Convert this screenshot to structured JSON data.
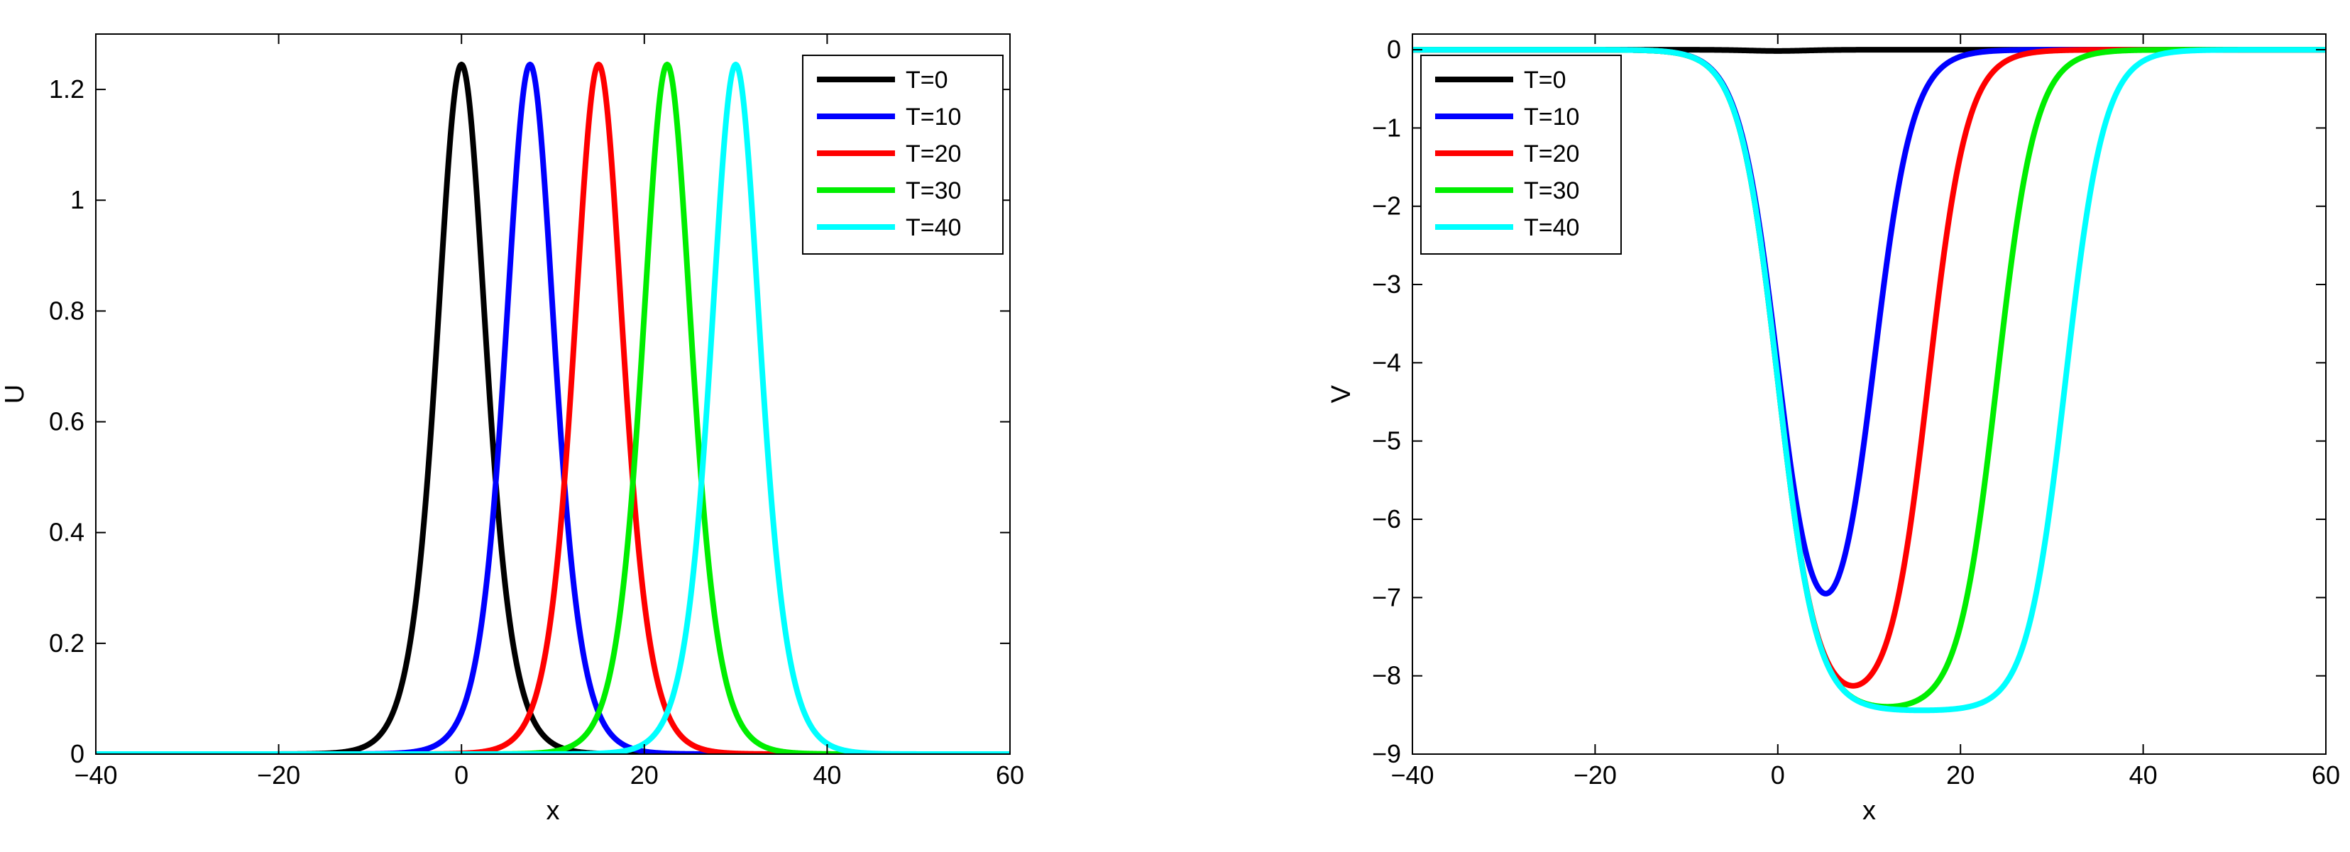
{
  "chart_data": [
    {
      "type": "line",
      "title": "",
      "xlabel": "x",
      "ylabel": "U",
      "xlim": [
        -40,
        60
      ],
      "ylim": [
        0,
        1.3
      ],
      "xticks": [
        -40,
        -20,
        0,
        20,
        40,
        60
      ],
      "yticks": [
        0,
        0.2,
        0.4,
        0.6,
        0.8,
        1,
        1.2
      ],
      "grid": false,
      "legend_position": "top-right",
      "series": [
        {
          "name": "T=0",
          "color": "#000000",
          "shape": "sech2",
          "center": 0.0,
          "amplitude": 1.245
        },
        {
          "name": "T=10",
          "color": "#0000ff",
          "shape": "sech2",
          "center": 7.5,
          "amplitude": 1.245
        },
        {
          "name": "T=20",
          "color": "#ff0000",
          "shape": "sech2",
          "center": 15.0,
          "amplitude": 1.245
        },
        {
          "name": "T=30",
          "color": "#00ee00",
          "shape": "sech2",
          "center": 22.5,
          "amplitude": 1.245
        },
        {
          "name": "T=40",
          "color": "#00ffff",
          "shape": "sech2",
          "center": 30.0,
          "amplitude": 1.245
        }
      ]
    },
    {
      "type": "line",
      "title": "",
      "xlabel": "x",
      "ylabel": "V",
      "xlim": [
        -40,
        60
      ],
      "ylim": [
        -9,
        0.2
      ],
      "xticks": [
        -40,
        -20,
        0,
        20,
        40,
        60
      ],
      "yticks": [
        -9,
        -8,
        -7,
        -6,
        -5,
        -4,
        -3,
        -2,
        -1,
        0
      ],
      "grid": false,
      "legend_position": "top-left",
      "series": [
        {
          "name": "T=0",
          "color": "#000000",
          "shape": "dip",
          "start": -2.0,
          "end": 2.0,
          "depth": -0.03,
          "steepness": 2.0
        },
        {
          "name": "T=10",
          "color": "#0000ff",
          "shape": "dip",
          "start": 0.0,
          "end": 10.5,
          "depth": -8.5,
          "steepness": 2.1,
          "min_value": -6.95,
          "min_x": 3.5
        },
        {
          "name": "T=20",
          "color": "#ff0000",
          "shape": "dip",
          "start": 0.0,
          "end": 16.5,
          "depth": -8.45,
          "steepness": 2.1
        },
        {
          "name": "T=30",
          "color": "#00ee00",
          "shape": "dip",
          "start": 0.0,
          "end": 24.0,
          "depth": -8.45,
          "steepness": 2.1
        },
        {
          "name": "T=40",
          "color": "#00ffff",
          "shape": "dip",
          "start": 0.0,
          "end": 31.5,
          "depth": -8.45,
          "steepness": 2.1
        }
      ]
    }
  ]
}
